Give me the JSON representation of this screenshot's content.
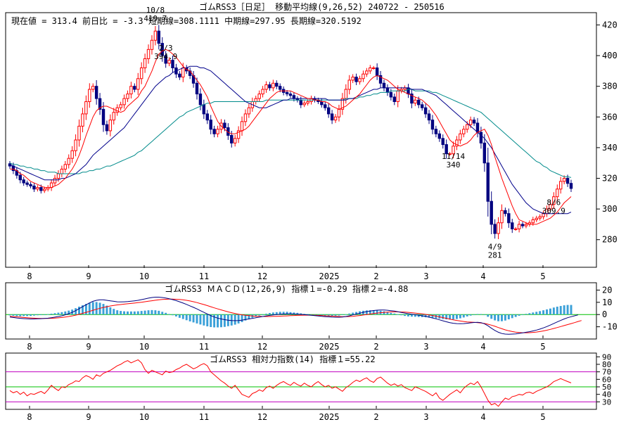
{
  "header": {
    "title": "ゴムRSS3［日足］ 移動平均線(9,26,52) 240722 - 250516",
    "info": "現在値 = 313.4  前日比 = -3.3   短期線=308.1111   中期線=297.95   長期線=320.5192"
  },
  "colors": {
    "up": "#ff0000",
    "down": "#000080",
    "ma_short": "#ff0000",
    "ma_mid": "#00008b",
    "ma_long": "#008b8b",
    "macd": "#000080",
    "signal": "#ff0000",
    "hist": "#3aa0d8",
    "rsi": "#ff0000",
    "zero_line": "#00c000",
    "band": "#c000c0"
  },
  "chart_data": [
    {
      "type": "candlestick",
      "title": "ゴムRSS3［日足］ 移動平均線(9,26,52) 240722 - 250516",
      "x_labels": [
        "8",
        "9",
        "10",
        "11",
        "12",
        "2025",
        "2",
        "3",
        "4",
        "5"
      ],
      "y_ticks": [
        280,
        300,
        320,
        340,
        360,
        380,
        400,
        420
      ],
      "ylim": [
        262,
        428
      ],
      "grid": false,
      "annotations": [
        {
          "date": "8/6",
          "value": 309.9,
          "text": "8/6\n309.9",
          "position": "below"
        },
        {
          "date": "10/8",
          "value": 419.7,
          "text": "10/8\n419.7",
          "position": "above"
        },
        {
          "date": "11/14",
          "value": 340,
          "text": "11/14\n340",
          "position": "below"
        },
        {
          "date": "2/3",
          "value": 394.9,
          "text": "2/3\n394.9",
          "position": "above"
        },
        {
          "date": "4/9",
          "value": 281,
          "text": "4/9\n281",
          "position": "below"
        }
      ],
      "close": [
        328,
        325,
        322,
        319,
        317,
        316,
        315,
        313,
        314,
        312,
        313,
        314,
        317,
        320,
        323,
        326,
        329,
        333,
        338,
        345,
        354,
        362,
        370,
        378,
        380,
        372,
        365,
        355,
        351,
        358,
        363,
        366,
        368,
        372,
        375,
        380,
        378,
        385,
        392,
        398,
        404,
        410,
        416,
        408,
        400,
        395,
        397,
        392,
        388,
        386,
        392,
        390,
        387,
        382,
        375,
        368,
        362,
        358,
        352,
        349,
        352,
        356,
        353,
        348,
        343,
        346,
        351,
        357,
        362,
        366,
        370,
        372,
        375,
        378,
        381,
        379,
        382,
        380,
        378,
        376,
        375,
        374,
        372,
        371,
        368,
        369,
        370,
        372,
        371,
        370,
        368,
        366,
        362,
        358,
        360,
        365,
        372,
        378,
        384,
        386,
        383,
        385,
        388,
        390,
        392,
        392,
        387,
        382,
        379,
        376,
        373,
        370,
        377,
        378,
        379,
        375,
        369,
        371,
        368,
        366,
        362,
        358,
        352,
        349,
        346,
        342,
        336,
        336,
        341,
        345,
        349,
        352,
        355,
        358,
        356,
        350,
        343,
        330,
        305,
        290,
        284,
        291,
        299,
        297,
        291,
        287,
        287,
        290,
        289,
        290,
        291,
        293,
        294,
        295,
        297,
        300,
        303,
        308,
        313,
        318,
        320,
        316.7,
        313.4
      ],
      "ma_short": [
        326,
        326,
        325,
        323,
        322,
        320,
        318,
        317,
        316,
        315,
        314,
        314,
        314,
        315,
        316,
        318,
        320,
        323,
        326,
        330,
        335,
        341,
        348,
        354,
        360,
        364,
        366,
        367,
        367,
        366,
        365,
        364,
        363,
        364,
        367,
        369,
        371,
        373,
        377,
        380,
        385,
        390,
        396,
        401,
        403,
        404,
        403,
        401,
        399,
        396,
        393,
        391,
        390,
        387,
        384,
        381,
        377,
        373,
        367,
        362,
        357,
        354,
        352,
        350,
        349,
        349,
        350,
        351,
        352,
        354,
        357,
        360,
        363,
        366,
        369,
        372,
        374,
        376,
        377,
        377,
        377,
        377,
        376,
        375,
        374,
        373,
        372,
        372,
        371,
        371,
        370,
        370,
        369,
        367,
        366,
        365,
        366,
        367,
        369,
        371,
        373,
        375,
        378,
        381,
        384,
        386,
        387,
        386,
        385,
        384,
        382,
        380,
        378,
        377,
        376,
        375,
        374,
        373,
        372,
        371,
        369,
        367,
        364,
        361,
        357,
        353,
        349,
        345,
        343,
        342,
        341,
        342,
        343,
        345,
        348,
        350,
        351,
        352,
        348,
        342,
        334,
        327,
        320,
        314,
        308,
        302,
        297,
        293,
        292,
        291,
        290,
        290,
        290,
        291,
        292,
        293,
        294,
        296,
        298,
        301,
        304,
        306,
        308.1
      ],
      "ma_mid": [
        329,
        328,
        327,
        326,
        325,
        324,
        323,
        322,
        321,
        320,
        319,
        319,
        319,
        319,
        319,
        320,
        320,
        321,
        322,
        323,
        325,
        327,
        329,
        332,
        335,
        337,
        339,
        341,
        343,
        345,
        347,
        349,
        351,
        353,
        356,
        359,
        362,
        365,
        368,
        371,
        374,
        377,
        380,
        382,
        384,
        386,
        387,
        389,
        390,
        391,
        392,
        392,
        393,
        393,
        393,
        392,
        392,
        391,
        390,
        388,
        386,
        384,
        382,
        380,
        378,
        376,
        374,
        372,
        370,
        369,
        368,
        367,
        366,
        366,
        366,
        367,
        368,
        369,
        370,
        371,
        371,
        372,
        372,
        372,
        372,
        372,
        372,
        372,
        372,
        372,
        372,
        372,
        371,
        371,
        371,
        371,
        371,
        371,
        372,
        372,
        373,
        374,
        375,
        376,
        377,
        378,
        378,
        379,
        379,
        379,
        379,
        379,
        379,
        379,
        379,
        379,
        378,
        378,
        378,
        378,
        377,
        376,
        375,
        374,
        372,
        370,
        368,
        366,
        364,
        362,
        360,
        358,
        356,
        354,
        352,
        350,
        348,
        346,
        343,
        340,
        336,
        332,
        328,
        324,
        320,
        316,
        313,
        310,
        307,
        304,
        302,
        300,
        299,
        298,
        297,
        297,
        297,
        297,
        297,
        297,
        297,
        297,
        297.95
      ],
      "ma_long": [
        330,
        329,
        329,
        328,
        328,
        327,
        327,
        326,
        326,
        325,
        325,
        324,
        324,
        324,
        323,
        323,
        323,
        323,
        323,
        323,
        323,
        324,
        324,
        325,
        325,
        326,
        326,
        327,
        328,
        328,
        329,
        330,
        331,
        332,
        333,
        334,
        335,
        337,
        338,
        340,
        342,
        344,
        346,
        348,
        350,
        352,
        354,
        356,
        358,
        360,
        361,
        363,
        364,
        365,
        366,
        367,
        368,
        369,
        369,
        370,
        370,
        370,
        370,
        370,
        370,
        370,
        370,
        370,
        370,
        370,
        370,
        370,
        370,
        370,
        371,
        371,
        371,
        371,
        371,
        371,
        371,
        371,
        371,
        371,
        371,
        371,
        371,
        371,
        371,
        371,
        371,
        371,
        371,
        371,
        371,
        371,
        371,
        372,
        372,
        372,
        372,
        373,
        373,
        374,
        374,
        375,
        375,
        376,
        376,
        376,
        377,
        377,
        377,
        377,
        377,
        378,
        378,
        377,
        377,
        377,
        377,
        377,
        376,
        376,
        375,
        374,
        373,
        372,
        371,
        370,
        369,
        368,
        367,
        366,
        365,
        364,
        363,
        361,
        359,
        357,
        355,
        353,
        351,
        349,
        347,
        345,
        343,
        341,
        339,
        337,
        335,
        333,
        331,
        330,
        328,
        327,
        325,
        324,
        323,
        322,
        321,
        321,
        320.5
      ]
    },
    {
      "type": "line",
      "title": "ゴムRSS3  ＭＡＣＤ(12,26,9)",
      "legend_text": "指標１=-0.29   指標２=-4.88",
      "legend_label": "ゴムRSS3  ＭＡＣＤ(12,26,9) 指標１=-0.29  指標２=-4.88",
      "y_ticks": [
        20,
        10,
        0,
        -10
      ],
      "ylim": [
        -20,
        26
      ],
      "x_labels": [
        "8",
        "9",
        "10",
        "11",
        "12",
        "2025",
        "2",
        "3",
        "4",
        "5"
      ],
      "series": [
        {
          "name": "指標１",
          "values": [
            -2,
            -2.4,
            -2.8,
            -3.1,
            -3.3,
            -3.5,
            -3.6,
            -3.6,
            -3.5,
            -3.4,
            -3.2,
            -3,
            -2.6,
            -2.1,
            -1.6,
            -1,
            -0.2,
            0.7,
            1.8,
            3.2,
            4.8,
            6.4,
            8,
            9.5,
            10.8,
            11.6,
            12,
            12,
            11.6,
            11.2,
            10.8,
            10.4,
            10.3,
            10.4,
            10.6,
            10.9,
            11.2,
            11.6,
            12.2,
            12.8,
            13.4,
            13.9,
            14.2,
            14.2,
            13.9,
            13.5,
            12.9,
            12.2,
            11.4,
            10.4,
            9.4,
            8.3,
            7.1,
            5.9,
            4.6,
            3.2,
            1.8,
            0.4,
            -0.9,
            -2,
            -2.9,
            -3.6,
            -4.2,
            -4.6,
            -4.9,
            -5,
            -4.9,
            -4.6,
            -4.1,
            -3.6,
            -3.1,
            -2.6,
            -2.1,
            -1.6,
            -1.1,
            -0.7,
            -0.3,
            0,
            0.3,
            0.4,
            0.5,
            0.5,
            0.4,
            0.3,
            0.1,
            -0.1,
            -0.3,
            -0.6,
            -0.9,
            -1.2,
            -1.5,
            -1.7,
            -1.9,
            -2.1,
            -2.2,
            -2.2,
            -2,
            -1.6,
            -1,
            -0.3,
            0.4,
            1.1,
            1.8,
            2.4,
            2.9,
            3.3,
            3.6,
            3.7,
            3.7,
            3.5,
            3.2,
            2.8,
            2.3,
            1.7,
            1.2,
            0.7,
            0.3,
            -0.1,
            -0.5,
            -1,
            -1.5,
            -2.1,
            -2.8,
            -3.5,
            -4.3,
            -5.1,
            -5.9,
            -6.6,
            -7.1,
            -7.4,
            -7.5,
            -7.4,
            -7.1,
            -6.8,
            -6.5,
            -6.3,
            -6.6,
            -7.6,
            -9.2,
            -11.2,
            -13,
            -14.5,
            -15.5,
            -16,
            -16.1,
            -16,
            -15.8,
            -15.4,
            -15,
            -14.5,
            -14,
            -13.4,
            -12.7,
            -11.9,
            -10.9,
            -9.8,
            -8.6,
            -7.3,
            -6,
            -4.8,
            -3.6,
            -2.6,
            -1.8,
            -1,
            -0.29
          ]
        },
        {
          "name": "指標２",
          "values": [
            -1.5,
            -1.7,
            -1.9,
            -2.1,
            -2.4,
            -2.6,
            -2.8,
            -3,
            -3.1,
            -3.2,
            -3.2,
            -3.2,
            -3.1,
            -2.9,
            -2.7,
            -2.4,
            -2,
            -1.6,
            -1.1,
            -0.5,
            0.2,
            1,
            1.8,
            2.6,
            3.5,
            4.3,
            5.1,
            5.8,
            6.4,
            7,
            7.5,
            7.9,
            8.2,
            8.5,
            8.8,
            9.1,
            9.4,
            9.7,
            10.1,
            10.5,
            10.9,
            11.3,
            11.7,
            12,
            12.3,
            12.5,
            12.6,
            12.6,
            12.5,
            12.3,
            12,
            11.6,
            11.1,
            10.5,
            9.8,
            9,
            8.2,
            7.3,
            6.4,
            5.5,
            4.6,
            3.8,
            3,
            2.2,
            1.5,
            0.9,
            0.3,
            -0.2,
            -0.6,
            -0.9,
            -1.2,
            -1.4,
            -1.5,
            -1.6,
            -1.6,
            -1.6,
            -1.5,
            -1.4,
            -1.3,
            -1.2,
            -1.1,
            -0.9,
            -0.8,
            -0.7,
            -0.6,
            -0.5,
            -0.5,
            -0.5,
            -0.6,
            -0.7,
            -0.8,
            -1,
            -1.1,
            -1.3,
            -1.5,
            -1.6,
            -1.7,
            -1.7,
            -1.6,
            -1.4,
            -1.1,
            -0.8,
            -0.4,
            0,
            0.4,
            0.8,
            1.2,
            1.5,
            1.8,
            2,
            2.2,
            2.2,
            2.2,
            2.1,
            2,
            1.8,
            1.5,
            1.2,
            0.9,
            0.5,
            0.1,
            -0.3,
            -0.8,
            -1.3,
            -1.9,
            -2.5,
            -3.1,
            -3.7,
            -4.3,
            -4.8,
            -5.3,
            -5.7,
            -6,
            -6.2,
            -6.4,
            -6.6,
            -6.9,
            -7.3,
            -7.9,
            -8.7,
            -9.6,
            -10.6,
            -11.6,
            -12.5,
            -13.3,
            -13.9,
            -14.4,
            -14.7,
            -14.9,
            -14.9,
            -14.8,
            -14.6,
            -14.3,
            -13.9,
            -13.4,
            -12.8,
            -12.1,
            -11.4,
            -10.6,
            -9.8,
            -9,
            -8.2,
            -7.4,
            -6.6,
            -5.7,
            -4.88
          ]
        }
      ]
    },
    {
      "type": "line",
      "title": "ゴムRSS3   相対力指数(14)",
      "legend_text": "指標１=55.22",
      "legend_label": "ゴムRSS3   相対力指数(14) 指標１=55.22",
      "y_ticks": [
        90,
        80,
        70,
        60,
        50,
        40,
        30
      ],
      "ylim": [
        20,
        95
      ],
      "x_labels": [
        "8",
        "9",
        "10",
        "11",
        "12",
        "2025",
        "2",
        "3",
        "4",
        "5"
      ],
      "series": [
        {
          "name": "指標１",
          "values": [
            45,
            42,
            44,
            40,
            43,
            38,
            41,
            40,
            42,
            44,
            41,
            46,
            52,
            48,
            45,
            50,
            49,
            53,
            55,
            58,
            57,
            62,
            65,
            63,
            60,
            66,
            64,
            68,
            70,
            72,
            75,
            78,
            80,
            83,
            85,
            82,
            84,
            86,
            82,
            73,
            68,
            72,
            70,
            68,
            66,
            71,
            69,
            70,
            73,
            75,
            78,
            80,
            77,
            74,
            76,
            79,
            81,
            78,
            70,
            66,
            62,
            58,
            55,
            51,
            48,
            52,
            46,
            40,
            38,
            36,
            41,
            43,
            46,
            44,
            49,
            51,
            48,
            52,
            55,
            57,
            54,
            52,
            56,
            53,
            51,
            55,
            52,
            50,
            54,
            57,
            53,
            50,
            52,
            48,
            50,
            47,
            44,
            49,
            52,
            56,
            59,
            57,
            60,
            62,
            58,
            56,
            61,
            63,
            59,
            55,
            52,
            54,
            51,
            53,
            49,
            47,
            45,
            50,
            48,
            46,
            44,
            41,
            38,
            42,
            35,
            32,
            36,
            40,
            43,
            46,
            42,
            48,
            52,
            55,
            53,
            57,
            50,
            41,
            32,
            26,
            28,
            24,
            30,
            35,
            33,
            37,
            38,
            40,
            39,
            42,
            43,
            41,
            44,
            46,
            48,
            50,
            53,
            57,
            59,
            61,
            59,
            57,
            55.22
          ]
        }
      ]
    }
  ]
}
